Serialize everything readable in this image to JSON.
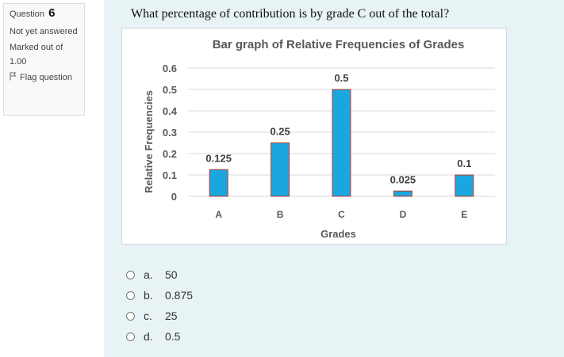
{
  "info": {
    "question_label": "Question",
    "question_number": "6",
    "status": "Not yet answered",
    "marks": "Marked out of 1.00",
    "flag_label": "Flag question"
  },
  "question": {
    "text": "What percentage of contribution is by grade C out of the total?"
  },
  "answers": [
    {
      "letter": "a.",
      "value": "50"
    },
    {
      "letter": "b.",
      "value": "0.875"
    },
    {
      "letter": "c.",
      "value": "25"
    },
    {
      "letter": "d.",
      "value": "0.5"
    }
  ],
  "chart_data": {
    "type": "bar",
    "title": "Bar graph of Relative Frequencies of Grades",
    "xlabel": "Grades",
    "ylabel": "Relative Frequencies",
    "categories": [
      "A",
      "B",
      "C",
      "D",
      "E"
    ],
    "values": [
      0.125,
      0.25,
      0.5,
      0.025,
      0.1
    ],
    "value_labels": [
      "0.125",
      "0.25",
      "0.5",
      "0.025",
      "0.1"
    ],
    "yticks": [
      0,
      0.1,
      0.2,
      0.3,
      0.4,
      0.5,
      0.6
    ],
    "ytick_labels": [
      "0",
      "0.1",
      "0.2",
      "0.3",
      "0.4",
      "0.5",
      "0.6"
    ],
    "ylim": [
      0,
      0.6
    ],
    "grid": true,
    "bar_color": "#1aa7e0",
    "bar_edge_color": "#c0392b"
  }
}
